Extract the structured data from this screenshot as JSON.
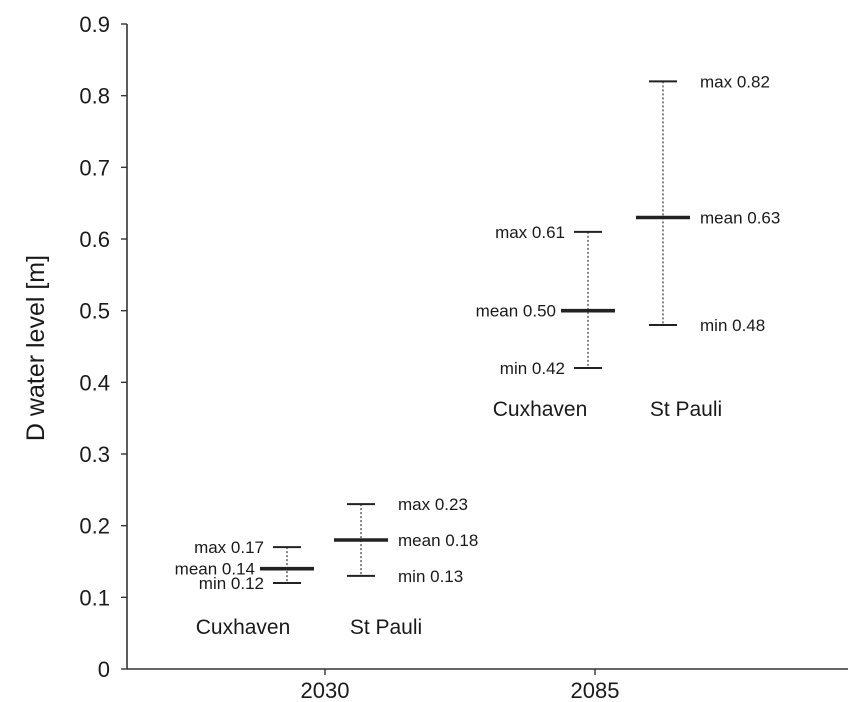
{
  "chart_data": {
    "type": "range",
    "ylabel": "D water level  [m]",
    "xlabel": "",
    "ylim": [
      0,
      0.9
    ],
    "yticks": [
      "0",
      "0.1",
      "0.2",
      "0.3",
      "0.4",
      "0.5",
      "0.6",
      "0.7",
      "0.8",
      "0.9"
    ],
    "x_categories": [
      "2030",
      "2085"
    ],
    "grid": false,
    "legend": "none",
    "groups": [
      {
        "year": "2030",
        "stations": [
          {
            "name": "Cuxhaven",
            "min": 0.12,
            "mean": 0.14,
            "max": 0.17,
            "labels": {
              "min": "min 0.12",
              "mean": "mean 0.14",
              "max": "max 0.17"
            }
          },
          {
            "name": "St Pauli",
            "min": 0.13,
            "mean": 0.18,
            "max": 0.23,
            "labels": {
              "min": "min 0.13",
              "mean": "mean 0.18",
              "max": "max 0.23"
            }
          }
        ]
      },
      {
        "year": "2085",
        "stations": [
          {
            "name": "Cuxhaven",
            "min": 0.42,
            "mean": 0.5,
            "max": 0.61,
            "labels": {
              "min": "min 0.42",
              "mean": "mean 0.50",
              "max": "max 0.61"
            }
          },
          {
            "name": "St Pauli",
            "min": 0.48,
            "mean": 0.63,
            "max": 0.82,
            "labels": {
              "min": "min 0.48",
              "mean": "mean 0.63",
              "max": "max 0.82"
            }
          }
        ]
      }
    ],
    "colors": {
      "axis": "#333333",
      "mark": "#222222"
    }
  }
}
